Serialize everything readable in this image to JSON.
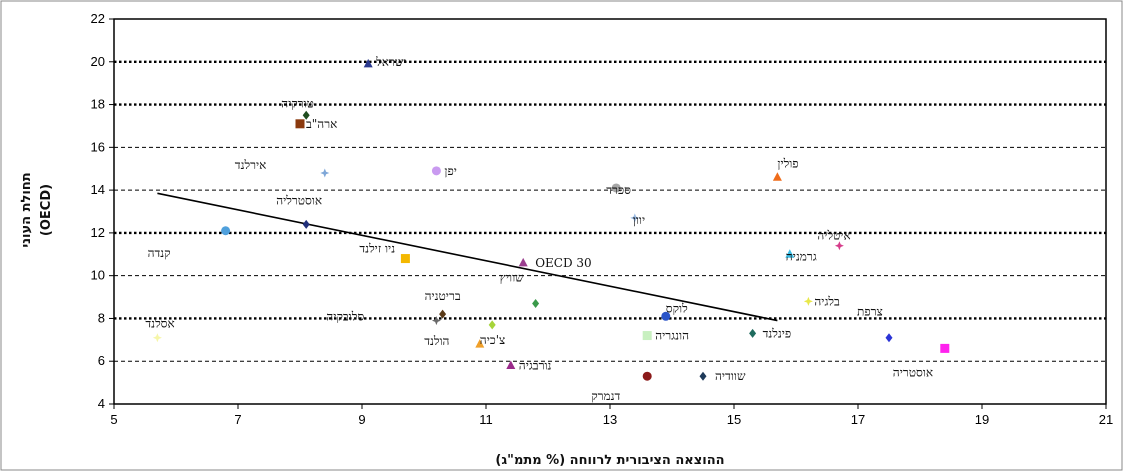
{
  "chart_data": {
    "type": "scatter",
    "xlabel": "ההוצאה הציבורית לרווחה (% מתמ\"ג)",
    "ylabel": "תחולת העוני",
    "ylabel_sub": "(OECD)",
    "xlim": [
      5,
      21
    ],
    "ylim": [
      4,
      22
    ],
    "xticks": [
      5,
      7,
      9,
      11,
      13,
      15,
      17,
      19,
      21
    ],
    "yticks": [
      4,
      6,
      8,
      10,
      12,
      14,
      16,
      18,
      20,
      22
    ],
    "grid_dotted": [
      8,
      12,
      18,
      20
    ],
    "grid_dashed": [
      6,
      10,
      14,
      16
    ],
    "trendline": [
      [
        5.7,
        13.85
      ],
      [
        15.7,
        7.9
      ]
    ],
    "points": [
      {
        "label": "ישראל",
        "x": 9.1,
        "y": 19.9,
        "color": "#2b3a8f",
        "marker": "triangle"
      },
      {
        "label": "טורקיה",
        "x": 8.1,
        "y": 17.5,
        "color": "#1f4d1f",
        "marker": "diamond"
      },
      {
        "label": "ארה\"ב",
        "x": 8.0,
        "y": 17.1,
        "color": "#8b3a0e",
        "marker": "square"
      },
      {
        "label": "אירלנד",
        "x": 8.4,
        "y": 14.8,
        "color": "#7fa7d8",
        "marker": "star"
      },
      {
        "label": "יפן",
        "x": 10.2,
        "y": 14.9,
        "color": "#c99af0",
        "marker": "circle"
      },
      {
        "label": "ספרד",
        "x": 13.1,
        "y": 14.1,
        "color": "#a6a6a6",
        "marker": "circle"
      },
      {
        "label": "פולין",
        "x": 15.7,
        "y": 14.6,
        "color": "#ef6c1a",
        "marker": "triangle"
      },
      {
        "label": "יוון",
        "x": 13.4,
        "y": 12.7,
        "color": "#9bbbe3",
        "marker": "star"
      },
      {
        "label": "אוסטרליה",
        "x": 8.1,
        "y": 12.4,
        "color": "#202f7a",
        "marker": "diamond"
      },
      {
        "label": "קנדה",
        "x": 6.8,
        "y": 12.1,
        "color": "#4fa0dc",
        "marker": "circle"
      },
      {
        "label": "ניו זילנד",
        "x": 9.7,
        "y": 10.8,
        "color": "#f4b800",
        "marker": "square"
      },
      {
        "label": "OECD 30",
        "x": 11.6,
        "y": 10.6,
        "color": "#9b3f8f",
        "marker": "triangle"
      },
      {
        "label": "איטליה",
        "x": 16.7,
        "y": 11.4,
        "color": "#d63c8a",
        "marker": "star"
      },
      {
        "label": "גרמניה",
        "x": 15.9,
        "y": 11.0,
        "color": "#3cbee6",
        "marker": "triangle"
      },
      {
        "label": "שוויץ",
        "x": 11.8,
        "y": 8.7,
        "color": "#3a9a4a",
        "marker": "diamond"
      },
      {
        "label": "בלגיה",
        "x": 16.2,
        "y": 8.8,
        "color": "#e8e84a",
        "marker": "star"
      },
      {
        "label": "אסלנד",
        "x": 5.7,
        "y": 7.1,
        "color": "#f6f6a8",
        "marker": "star"
      },
      {
        "label": "בריטניה",
        "x": 10.3,
        "y": 8.2,
        "color": "#5a3a18",
        "marker": "diamond"
      },
      {
        "label": "סלובקיה",
        "x": 10.2,
        "y": 7.9,
        "color": "#6a6a6a",
        "marker": "star"
      },
      {
        "label": "הולנד",
        "x": 11.1,
        "y": 7.7,
        "color": "#a6d43a",
        "marker": "diamond"
      },
      {
        "label": "לוקס",
        "x": 13.9,
        "y": 8.1,
        "color": "#2b55c8",
        "marker": "circle"
      },
      {
        "label": "פינלנד",
        "x": 15.3,
        "y": 7.3,
        "color": "#1f6b5e",
        "marker": "diamond"
      },
      {
        "label": "צרפת",
        "x": 17.5,
        "y": 7.1,
        "color": "#2b34d6",
        "marker": "diamond"
      },
      {
        "label": "אוסטריה",
        "x": 18.4,
        "y": 6.6,
        "color": "#ff22ee",
        "marker": "square"
      },
      {
        "label": "הונגריה",
        "x": 13.6,
        "y": 7.2,
        "color": "#c8f0c0",
        "marker": "square"
      },
      {
        "label": "צ'כיה",
        "x": 10.9,
        "y": 6.8,
        "color": "#f0a02a",
        "marker": "triangle"
      },
      {
        "label": "נורבגיה",
        "x": 11.4,
        "y": 5.8,
        "color": "#9a2a8a",
        "marker": "triangle"
      },
      {
        "label": "דנמרק",
        "x": 13.6,
        "y": 5.3,
        "color": "#8b1a1a",
        "marker": "circle"
      },
      {
        "label": "שוודיה",
        "x": 14.5,
        "y": 5.3,
        "color": "#1f3a5a",
        "marker": "diamond"
      }
    ]
  }
}
